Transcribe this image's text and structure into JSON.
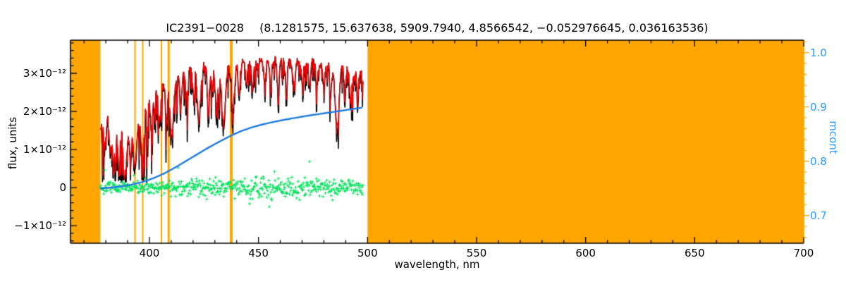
{
  "title": {
    "object": "IC2391−0028",
    "params": "(8.1281575, 15.637638, 5909.7940, 4.8566542, −0.052976645, 0.036163536)"
  },
  "colors": {
    "mask": "#ffa500",
    "observed": "#000000",
    "model": "#ff0000",
    "residual": "#00e05a",
    "continuum": "#1a7ae0",
    "right_label": "#2e9bff",
    "frame": "#000000",
    "background": "#ffffff"
  },
  "axes": {
    "x": {
      "label": "wavelength, nm"
    },
    "flux": {
      "label": "flux, units"
    },
    "mcont": {
      "label": "mcont"
    }
  },
  "chart_data": {
    "type": "line",
    "title": "IC2391−0028 (8.1281575, 15.637638, 5909.7940, 4.8566542, −0.052976645, 0.036163536)",
    "xlabel": "wavelength, nm",
    "ylabel": "flux, units",
    "ylabel_right": "mcont",
    "grid": false,
    "x_range_nm": [
      363.8,
      700
    ],
    "x_major_ticks": [
      400,
      450,
      500,
      550,
      600,
      650,
      700
    ],
    "x_minor_step_nm": 10,
    "flux_axis": {
      "unit_scale": "1e-12",
      "range": [
        -1.46,
        3.87
      ],
      "major_ticks": [
        -1,
        0,
        1,
        2,
        3
      ],
      "tick_labels": [
        "−1×10⁻¹²",
        "0",
        "1×10⁻¹²",
        "2×10⁻¹²",
        "3×10⁻¹²"
      ],
      "minor_step": 0.2
    },
    "mcont_axis": {
      "range": [
        0.649,
        1.023
      ],
      "major_ticks": [
        0.7,
        0.8,
        0.9,
        1.0
      ],
      "tick_labels": [
        "0.7",
        "0.8",
        "0.9",
        "1.0"
      ],
      "minor_step": 0.02
    },
    "spectrum_range_nm": [
      377.5,
      498
    ],
    "masked_regions_nm": [
      [
        363.8,
        377.5
      ],
      [
        500,
        700
      ]
    ],
    "masked_lines_nm": [
      {
        "nm": 393.4,
        "w": 2
      },
      {
        "nm": 396.9,
        "w": 2
      },
      {
        "nm": 405.5,
        "w": 2
      },
      {
        "nm": 408.8,
        "w": 3
      },
      {
        "nm": 437.5,
        "w": 4
      }
    ],
    "series": [
      {
        "name": "observed_spectrum",
        "color": "#000000",
        "style": "noisy_line",
        "envelope_x_nm": [
          377.5,
          380,
          382,
          384,
          386,
          388,
          390,
          392,
          394,
          396,
          398,
          400,
          402,
          404,
          406,
          408,
          410,
          413,
          416,
          419,
          422,
          425,
          428,
          431,
          434,
          437,
          440,
          443,
          446,
          449,
          452,
          455,
          458,
          461,
          464,
          467,
          470,
          473,
          476,
          479,
          482,
          485,
          488,
          491,
          494,
          498
        ],
        "envelope_flux": [
          1.55,
          2.0,
          1.85,
          1.7,
          1.6,
          1.55,
          1.6,
          1.7,
          1.75,
          1.9,
          2.15,
          2.3,
          2.45,
          2.55,
          2.7,
          2.8,
          2.85,
          2.95,
          3.05,
          3.1,
          3.15,
          3.2,
          3.1,
          3.1,
          3.2,
          3.25,
          3.3,
          3.3,
          3.35,
          3.3,
          3.35,
          3.3,
          3.35,
          3.3,
          3.35,
          3.3,
          3.35,
          3.3,
          3.3,
          3.25,
          3.2,
          3.1,
          3.2,
          3.15,
          3.1,
          3.05
        ]
      },
      {
        "name": "model_spectrum",
        "color": "#ff0000",
        "style": "noisy_line_overlaid"
      },
      {
        "name": "residual",
        "color": "#00e05a",
        "style": "plus_markers",
        "mean": 0,
        "amp_x_nm": [
          377.5,
          385,
          395,
          405,
          415,
          425,
          435,
          445,
          455,
          465,
          475,
          485,
          498
        ],
        "amp_flux": [
          0.07,
          0.08,
          0.08,
          0.09,
          0.11,
          0.12,
          0.13,
          0.15,
          0.15,
          0.14,
          0.13,
          0.12,
          0.11
        ]
      },
      {
        "name": "continuum",
        "color": "#1a7ae0",
        "axis": "right",
        "x_nm": [
          377.5,
          382,
          387,
          392,
          397,
          402,
          407,
          412,
          417,
          422,
          427,
          432,
          437,
          442,
          447,
          452,
          457,
          462,
          467,
          472,
          477,
          482,
          487,
          492,
          498
        ],
        "mcont": [
          0.75,
          0.7515,
          0.7535,
          0.757,
          0.762,
          0.769,
          0.778,
          0.789,
          0.801,
          0.813,
          0.825,
          0.836,
          0.8465,
          0.8555,
          0.8625,
          0.868,
          0.8725,
          0.8765,
          0.88,
          0.8835,
          0.8865,
          0.8895,
          0.8925,
          0.8955,
          0.899
        ]
      }
    ],
    "absorption_lines": [
      [
        379.8,
        0.8,
        0.5
      ],
      [
        382.0,
        0.9,
        0.5
      ],
      [
        383.6,
        1.1,
        0.6
      ],
      [
        385.9,
        0.9,
        0.5
      ],
      [
        388.9,
        1.2,
        0.7
      ],
      [
        391.2,
        0.8,
        0.5
      ],
      [
        393.4,
        1.25,
        0.7
      ],
      [
        396.9,
        1.2,
        0.7
      ],
      [
        400.9,
        0.7,
        0.5
      ],
      [
        404.6,
        0.9,
        0.5
      ],
      [
        407.8,
        0.8,
        0.5
      ],
      [
        410.2,
        1.5,
        0.8
      ],
      [
        414.4,
        0.8,
        0.5
      ],
      [
        417.1,
        0.7,
        0.4
      ],
      [
        420.2,
        0.7,
        0.4
      ],
      [
        422.7,
        1.5,
        0.7
      ],
      [
        427.1,
        0.9,
        0.5
      ],
      [
        430.8,
        1.0,
        0.6
      ],
      [
        434.0,
        1.6,
        0.8
      ],
      [
        438.3,
        1.2,
        0.6
      ],
      [
        441.0,
        0.8,
        0.4
      ],
      [
        444.5,
        0.7,
        0.4
      ],
      [
        447.3,
        0.8,
        0.4
      ],
      [
        452.9,
        0.7,
        0.4
      ],
      [
        455.6,
        0.6,
        0.4
      ],
      [
        459.0,
        0.7,
        0.4
      ],
      [
        462.8,
        0.6,
        0.4
      ],
      [
        466.5,
        0.7,
        0.4
      ],
      [
        470.1,
        0.6,
        0.4
      ],
      [
        473.4,
        0.7,
        0.4
      ],
      [
        476.8,
        0.6,
        0.4
      ],
      [
        480.0,
        0.7,
        0.4
      ],
      [
        483.2,
        0.6,
        0.4
      ],
      [
        486.1,
        1.6,
        0.8
      ],
      [
        489.6,
        0.7,
        0.4
      ],
      [
        492.3,
        0.8,
        0.5
      ],
      [
        495.4,
        0.7,
        0.4
      ]
    ],
    "noise": {
      "seed": 42,
      "rough_x_nm": [
        377.5,
        384,
        392,
        400,
        408,
        416,
        424,
        432,
        440,
        450,
        460,
        470,
        480,
        490,
        498
      ],
      "rough_amp": [
        0.55,
        0.6,
        0.55,
        0.42,
        0.4,
        0.38,
        0.36,
        0.34,
        0.3,
        0.3,
        0.28,
        0.28,
        0.3,
        0.3,
        0.3
      ]
    }
  }
}
